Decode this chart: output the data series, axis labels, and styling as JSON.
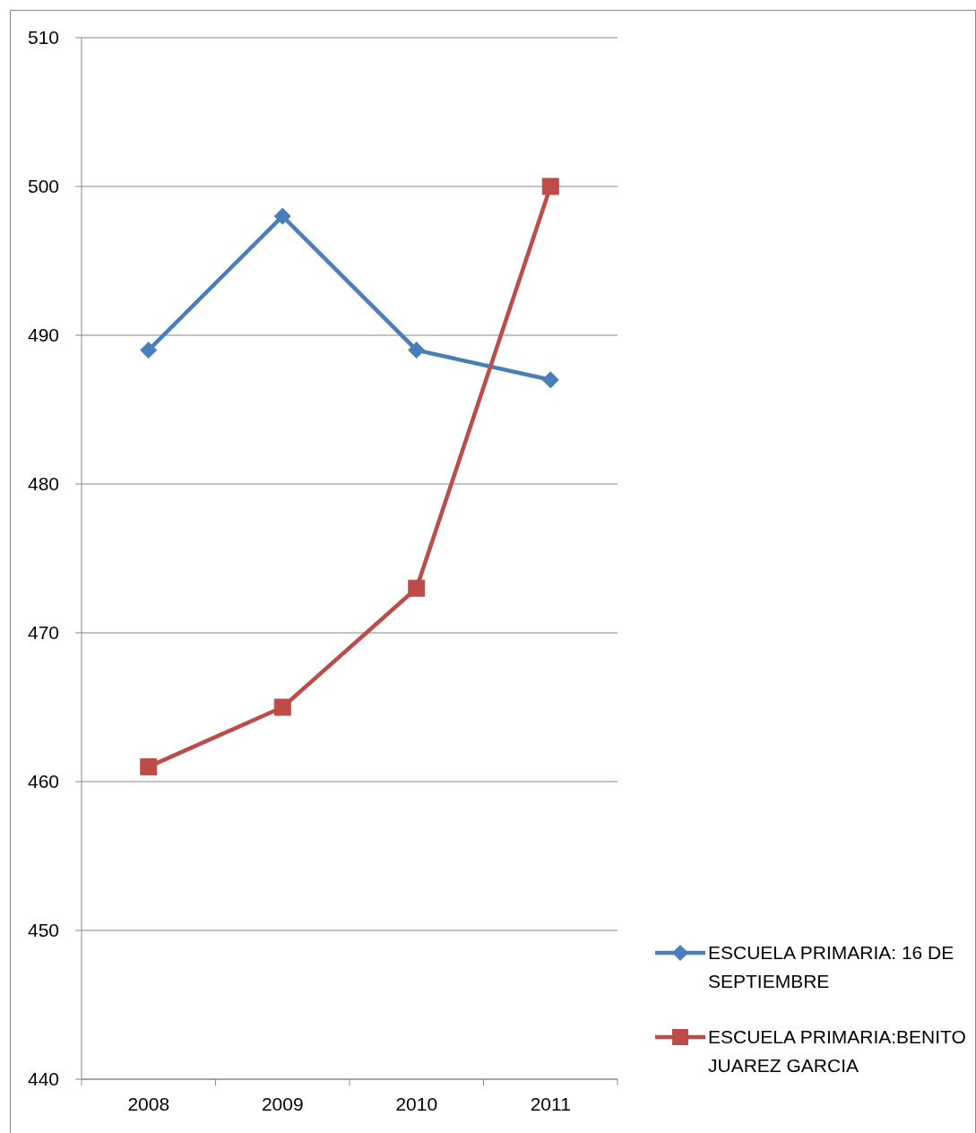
{
  "chart_data": {
    "type": "line",
    "categories": [
      "2008",
      "2009",
      "2010",
      "2011"
    ],
    "series": [
      {
        "name": "ESCUELA PRIMARIA: 16 DE SEPTIEMBRE",
        "color": "#4a7ebb",
        "marker": "diamond",
        "values": [
          489,
          498,
          489,
          487
        ]
      },
      {
        "name": "ESCUELA PRIMARIA:BENITO JUAREZ GARCIA",
        "color": "#be4b48",
        "marker": "square",
        "values": [
          461,
          465,
          473,
          500
        ]
      }
    ],
    "ylim": [
      440,
      510
    ],
    "yticks": [
      440,
      450,
      460,
      470,
      480,
      490,
      500,
      510
    ],
    "grid": "y",
    "legend": "bottom right",
    "line_style": "solid"
  }
}
